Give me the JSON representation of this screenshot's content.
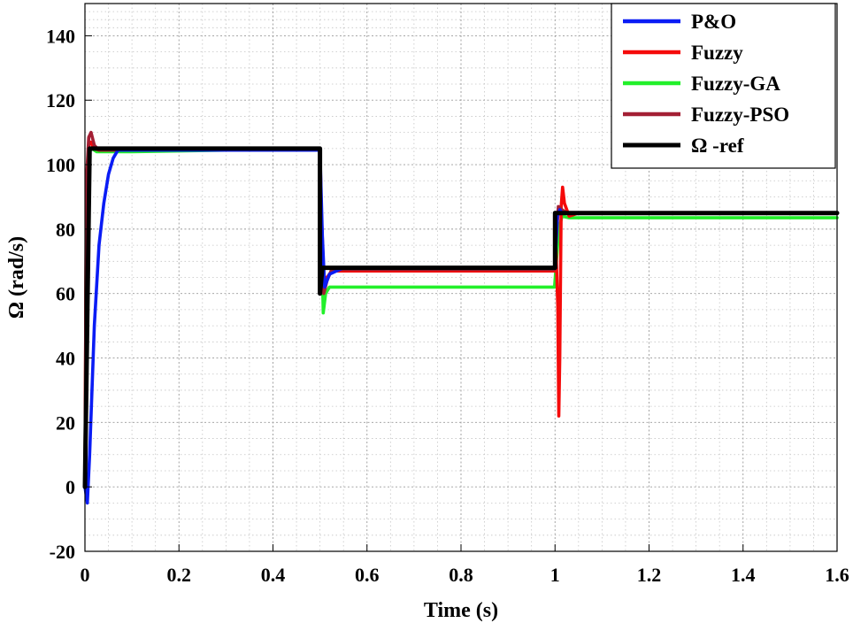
{
  "chart_data": {
    "type": "line",
    "xlabel": "Time (s)",
    "ylabel": "Ω (rad/s)",
    "xlim": [
      0,
      1.6
    ],
    "ylim": [
      -20,
      150
    ],
    "xticks": [
      0,
      0.2,
      0.4,
      0.6,
      0.8,
      1,
      1.2,
      1.4,
      1.6
    ],
    "xtick_labels": [
      "0",
      "0.2",
      "0.4",
      "0.6",
      "0.8",
      "1",
      "1.2",
      "1.4",
      "1.6"
    ],
    "yticks": [
      -20,
      0,
      20,
      40,
      60,
      80,
      100,
      120,
      140
    ],
    "ytick_labels": [
      "-20",
      "0",
      "20",
      "40",
      "60",
      "80",
      "100",
      "120",
      "140"
    ],
    "grid": true,
    "legend_position": "top-right",
    "series": [
      {
        "name": "P&O",
        "color": "#0a1cf5",
        "x": [
          0,
          0.005,
          0.01,
          0.02,
          0.03,
          0.04,
          0.05,
          0.06,
          0.07,
          0.1,
          0.2,
          0.3,
          0.4,
          0.5,
          0.505,
          0.51,
          0.52,
          0.55,
          0.6,
          0.8,
          0.999,
          1.0,
          1.005,
          1.01,
          1.015,
          1.02,
          1.03,
          1.05,
          1.2,
          1.4,
          1.6
        ],
        "y": [
          0,
          -5,
          10,
          50,
          75,
          88,
          97,
          102,
          104.5,
          104.5,
          104.5,
          104.5,
          104.5,
          104.5,
          78,
          62,
          66,
          68,
          68,
          68,
          68,
          70,
          84,
          86,
          85,
          85,
          85,
          85,
          85,
          85,
          85
        ]
      },
      {
        "name": "Fuzzy",
        "color": "#f50a0a",
        "x": [
          0,
          0.003,
          0.008,
          0.012,
          0.02,
          0.03,
          0.1,
          0.3,
          0.5,
          0.503,
          0.508,
          0.515,
          0.525,
          0.6,
          0.8,
          0.999,
          1.002,
          1.006,
          1.008,
          1.01,
          1.013,
          1.016,
          1.02,
          1.03,
          1.05,
          1.2,
          1.4,
          1.6
        ],
        "y": [
          0,
          90,
          106,
          107,
          105,
          104.5,
          104.5,
          104.5,
          104.5,
          85,
          65,
          65,
          67,
          67,
          67,
          67,
          74,
          56,
          22,
          40,
          87,
          93,
          88,
          84,
          85,
          85,
          85,
          85
        ]
      },
      {
        "name": "Fuzzy-GA",
        "color": "#22f02a",
        "x": [
          0,
          0.003,
          0.008,
          0.015,
          0.025,
          0.1,
          0.3,
          0.5,
          0.503,
          0.507,
          0.512,
          0.52,
          0.6,
          0.8,
          0.999,
          1.002,
          1.008,
          1.015,
          1.03,
          1.2,
          1.4,
          1.6
        ],
        "y": [
          0,
          85,
          104,
          105,
          104,
          104,
          104.5,
          104.5,
          80,
          54,
          60,
          62,
          62,
          62,
          62,
          68,
          80,
          84,
          83.5,
          83.5,
          83.5,
          83.5
        ]
      },
      {
        "name": "Fuzzy-PSO",
        "color": "#a31f34",
        "x": [
          0,
          0.003,
          0.008,
          0.013,
          0.02,
          0.03,
          0.1,
          0.3,
          0.5,
          0.503,
          0.508,
          0.515,
          0.525,
          0.6,
          0.8,
          0.999,
          1.002,
          1.007,
          1.015,
          1.025,
          1.05,
          1.2,
          1.4,
          1.6
        ],
        "y": [
          0,
          95,
          108.5,
          110,
          106,
          104.5,
          104.5,
          104.5,
          104.5,
          82,
          60,
          64,
          67.5,
          67.5,
          67.5,
          67.5,
          75,
          87,
          86,
          85,
          85,
          85,
          85,
          85
        ]
      },
      {
        "name": "Ω -ref",
        "color": "#000000",
        "x": [
          0,
          0.01,
          0.5,
          0.505,
          1.0,
          1.6
        ],
        "y": [
          0,
          105,
          105,
          60,
          85,
          85
        ],
        "segments": [
          [
            0,
            0
          ],
          [
            0.01,
            105
          ],
          [
            0.5,
            105
          ],
          [
            0.5,
            60
          ],
          [
            0.505,
            68
          ],
          [
            1.0,
            68
          ],
          [
            1.0,
            85
          ],
          [
            1.6,
            85
          ]
        ]
      }
    ]
  }
}
